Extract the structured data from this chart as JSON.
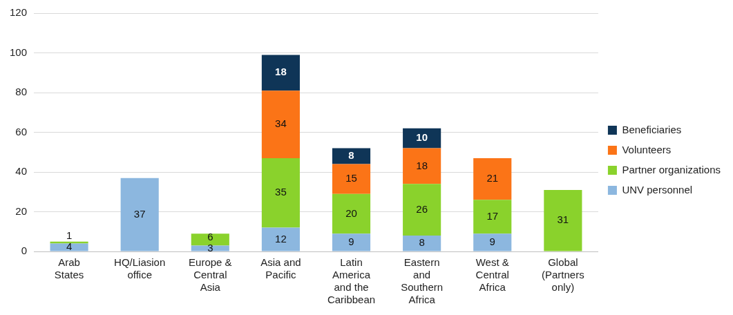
{
  "chart_data": {
    "type": "bar",
    "stacked": true,
    "categories": [
      "Arab\nStates",
      "HQ/Liasion\noffice",
      "Europe &\nCentral\nAsia",
      "Asia and\nPacific",
      "Latin\nAmerica\nand the\nCaribbean",
      "Eastern\nand\nSouthern\nAfrica",
      "West &\nCentral\nAfrica",
      "Global\n(Partners\nonly)"
    ],
    "series": [
      {
        "name": "UNV personnel",
        "color": "#8cb7df",
        "values": [
          4,
          37,
          3,
          12,
          9,
          8,
          9,
          null
        ]
      },
      {
        "name": "Partner organizations",
        "color": "#8ad22c",
        "values": [
          1,
          null,
          6,
          35,
          20,
          26,
          17,
          31
        ]
      },
      {
        "name": "Volunteers",
        "color": "#fb7417",
        "values": [
          null,
          null,
          null,
          34,
          15,
          18,
          21,
          null
        ]
      },
      {
        "name": "Beneficiaries",
        "color": "#0f3557",
        "values": [
          null,
          null,
          null,
          18,
          8,
          10,
          null,
          null
        ]
      }
    ],
    "ylim": [
      0,
      120
    ],
    "yticks": [
      0,
      20,
      40,
      60,
      80,
      100,
      120
    ],
    "grid": "y",
    "legend": "right",
    "data_labels": true
  }
}
